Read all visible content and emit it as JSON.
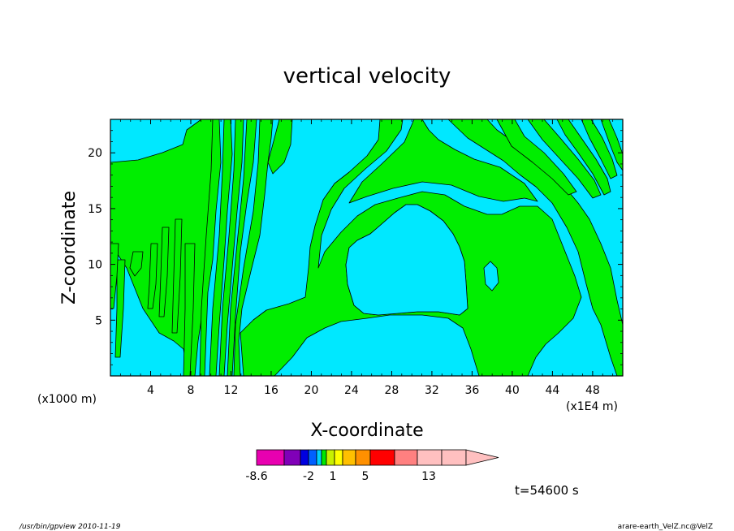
{
  "chart_data": {
    "type": "contour",
    "title": "vertical velocity",
    "xlabel": "X-coordinate",
    "ylabel": "Z-coordinate",
    "x_unit_label": "(x1E4 m)",
    "y_unit_label": "(x1000 m)",
    "xlim": [
      0,
      51
    ],
    "ylim": [
      0,
      23
    ],
    "x_ticks": [
      4,
      8,
      12,
      16,
      20,
      24,
      28,
      32,
      36,
      40,
      44,
      48
    ],
    "y_ticks": [
      5,
      10,
      15,
      20
    ],
    "fill_colors": {
      "negative_region": "#00e8ff",
      "positive_region": "#00ee00"
    },
    "colorbar": {
      "colors": [
        "#e800b0",
        "#8000b8",
        "#0000e0",
        "#0060ff",
        "#00d0ff",
        "#00e800",
        "#c8f000",
        "#ffff00",
        "#ffc000",
        "#ff9000",
        "#ff0000",
        "#ff8080",
        "#ffc0c0",
        "#ffc0c0"
      ],
      "tick_labels": [
        "-8.6",
        "-2",
        "1",
        "5",
        "13"
      ]
    },
    "time_label": "t=54600 s"
  },
  "footer": {
    "left": "/usr/bin/gpview   2010-11-19",
    "right": "arare-earth_VelZ.nc@VelZ"
  }
}
